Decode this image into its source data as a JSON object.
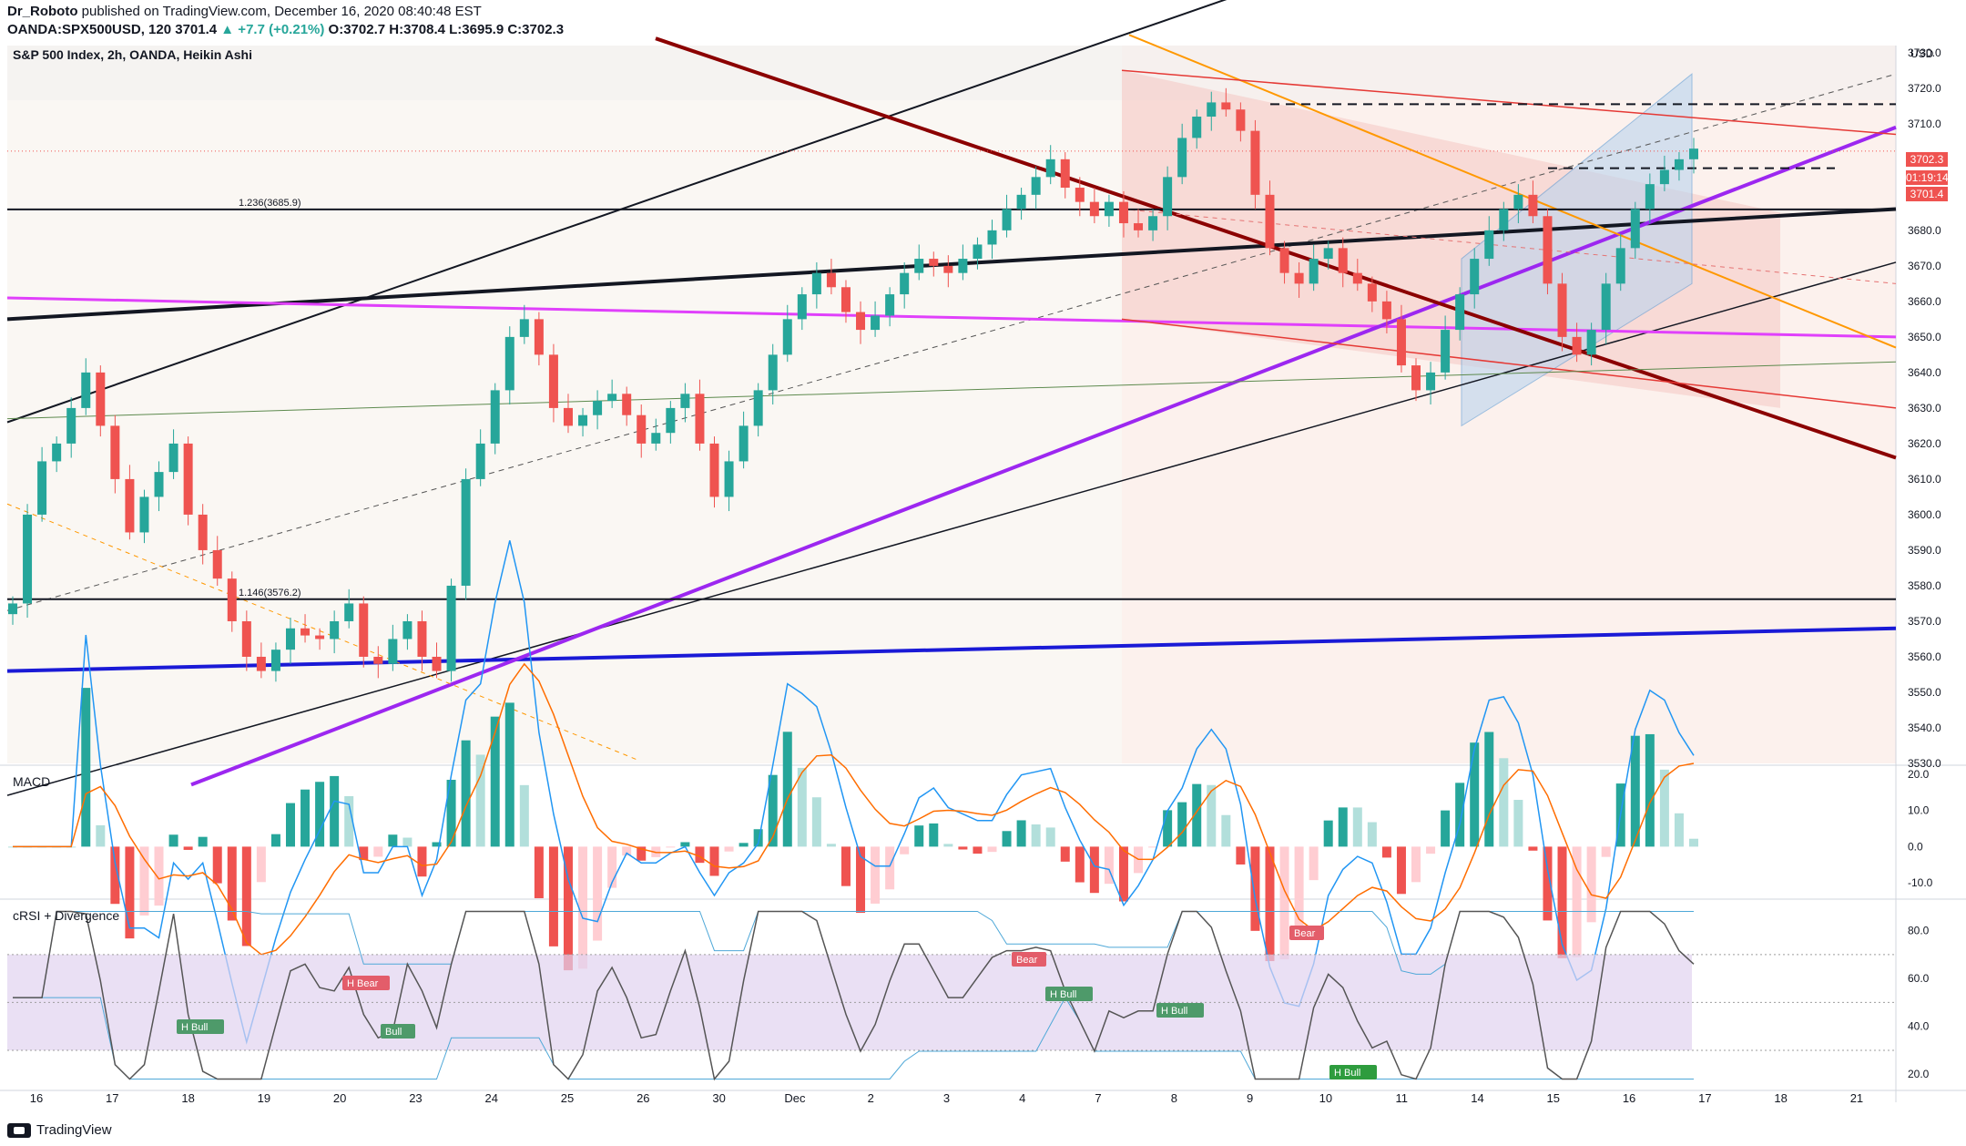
{
  "header": {
    "author": "Dr_Roboto",
    "published_text": "published on TradingView.com, December 16, 2020 08:40:48 EST",
    "symbol_line_prefix": "OANDA:SPX500USD, 120 3701.4",
    "change": "▲ +7.7 (+0.21%)",
    "ohlc": "O:3702.7 H:3708.4 L:3695.9 C:3702.3"
  },
  "main_title": "S&P 500 Index, 2h, OANDA, Heikin Ashi",
  "currency": "USD",
  "macd_title": "MACD",
  "crsi_title": "cRSI + Divergence",
  "footer_brand": "TradingView",
  "price_tags": {
    "close": "3702.3",
    "timer": "01:19:14",
    "last": "3701.4"
  },
  "fib_labels": {
    "upper": "1.236(3685.9)",
    "lower": "1.146(3576.2)"
  },
  "colors": {
    "up": "#26a69a",
    "down": "#ef5350",
    "purple": "#9c27f0",
    "magenta": "#e040fb",
    "orange": "#ff9800",
    "maroon": "#8b0000",
    "blue": "#1a1ad6"
  },
  "icons": [
    "tradingview-logo-icon"
  ],
  "chart_data": {
    "type": "candlestick",
    "title": "S&P 500 Index, 2h, OANDA, Heikin Ashi",
    "x_tick_labels": [
      "16",
      "17",
      "18",
      "19",
      "20",
      "23",
      "24",
      "25",
      "26",
      "30",
      "Dec",
      "2",
      "3",
      "4",
      "7",
      "8",
      "9",
      "10",
      "11",
      "14",
      "15",
      "16",
      "17",
      "18",
      "21"
    ],
    "y_tick_labels": [
      "3730.0",
      "3720.0",
      "3710.0",
      "3700.0",
      "3690.0",
      "3680.0",
      "3670.0",
      "3660.0",
      "3650.0",
      "3640.0",
      "3630.0",
      "3620.0",
      "3610.0",
      "3600.0",
      "3590.0",
      "3580.0",
      "3570.0",
      "3560.0",
      "3550.0",
      "3540.0",
      "3530.0"
    ],
    "ylim": [
      3530,
      3732
    ],
    "close_path": [
      3575,
      3600,
      3615,
      3620,
      3630,
      3640,
      3625,
      3610,
      3595,
      3605,
      3612,
      3620,
      3600,
      3590,
      3582,
      3570,
      3560,
      3556,
      3562,
      3568,
      3566,
      3565,
      3570,
      3575,
      3560,
      3558,
      3565,
      3570,
      3560,
      3556,
      3580,
      3610,
      3620,
      3635,
      3650,
      3655,
      3645,
      3630,
      3625,
      3628,
      3632,
      3634,
      3628,
      3620,
      3623,
      3630,
      3634,
      3620,
      3605,
      3615,
      3625,
      3635,
      3645,
      3655,
      3662,
      3668,
      3664,
      3657,
      3652,
      3656,
      3662,
      3668,
      3672,
      3670,
      3668,
      3672,
      3676,
      3680,
      3686,
      3690,
      3695,
      3700,
      3692,
      3688,
      3684,
      3688,
      3682,
      3680,
      3684,
      3695,
      3706,
      3712,
      3716,
      3714,
      3708,
      3690,
      3675,
      3668,
      3665,
      3672,
      3675,
      3668,
      3665,
      3660,
      3655,
      3642,
      3635,
      3640,
      3652,
      3662,
      3672,
      3680,
      3686,
      3690,
      3684,
      3665,
      3650,
      3645,
      3652,
      3665,
      3675,
      3686,
      3693,
      3697,
      3700,
      3703
    ],
    "horizontal_levels": [
      {
        "price": 3685.9,
        "label": "1.236(3685.9)"
      },
      {
        "price": 3576.2,
        "label": "1.146(3576.2)"
      },
      {
        "price": 3715.5,
        "style": "dashed"
      },
      {
        "price": 3697.5,
        "style": "dashed"
      }
    ],
    "macd": {
      "y_tick_labels": [
        "20.0",
        "10.0",
        "0.0",
        "-10.0"
      ],
      "ylim": [
        -14,
        22
      ]
    },
    "crsi": {
      "y_tick_labels": [
        "80.0",
        "60.0",
        "40.0",
        "20.0"
      ],
      "ylim": [
        14,
        92
      ],
      "band": [
        30,
        70
      ],
      "divergence_labels": [
        "H Bull",
        "H Bear",
        "Bull",
        "Bear",
        "H Bull",
        "H Bull",
        "Bear",
        "H Bull"
      ]
    }
  }
}
